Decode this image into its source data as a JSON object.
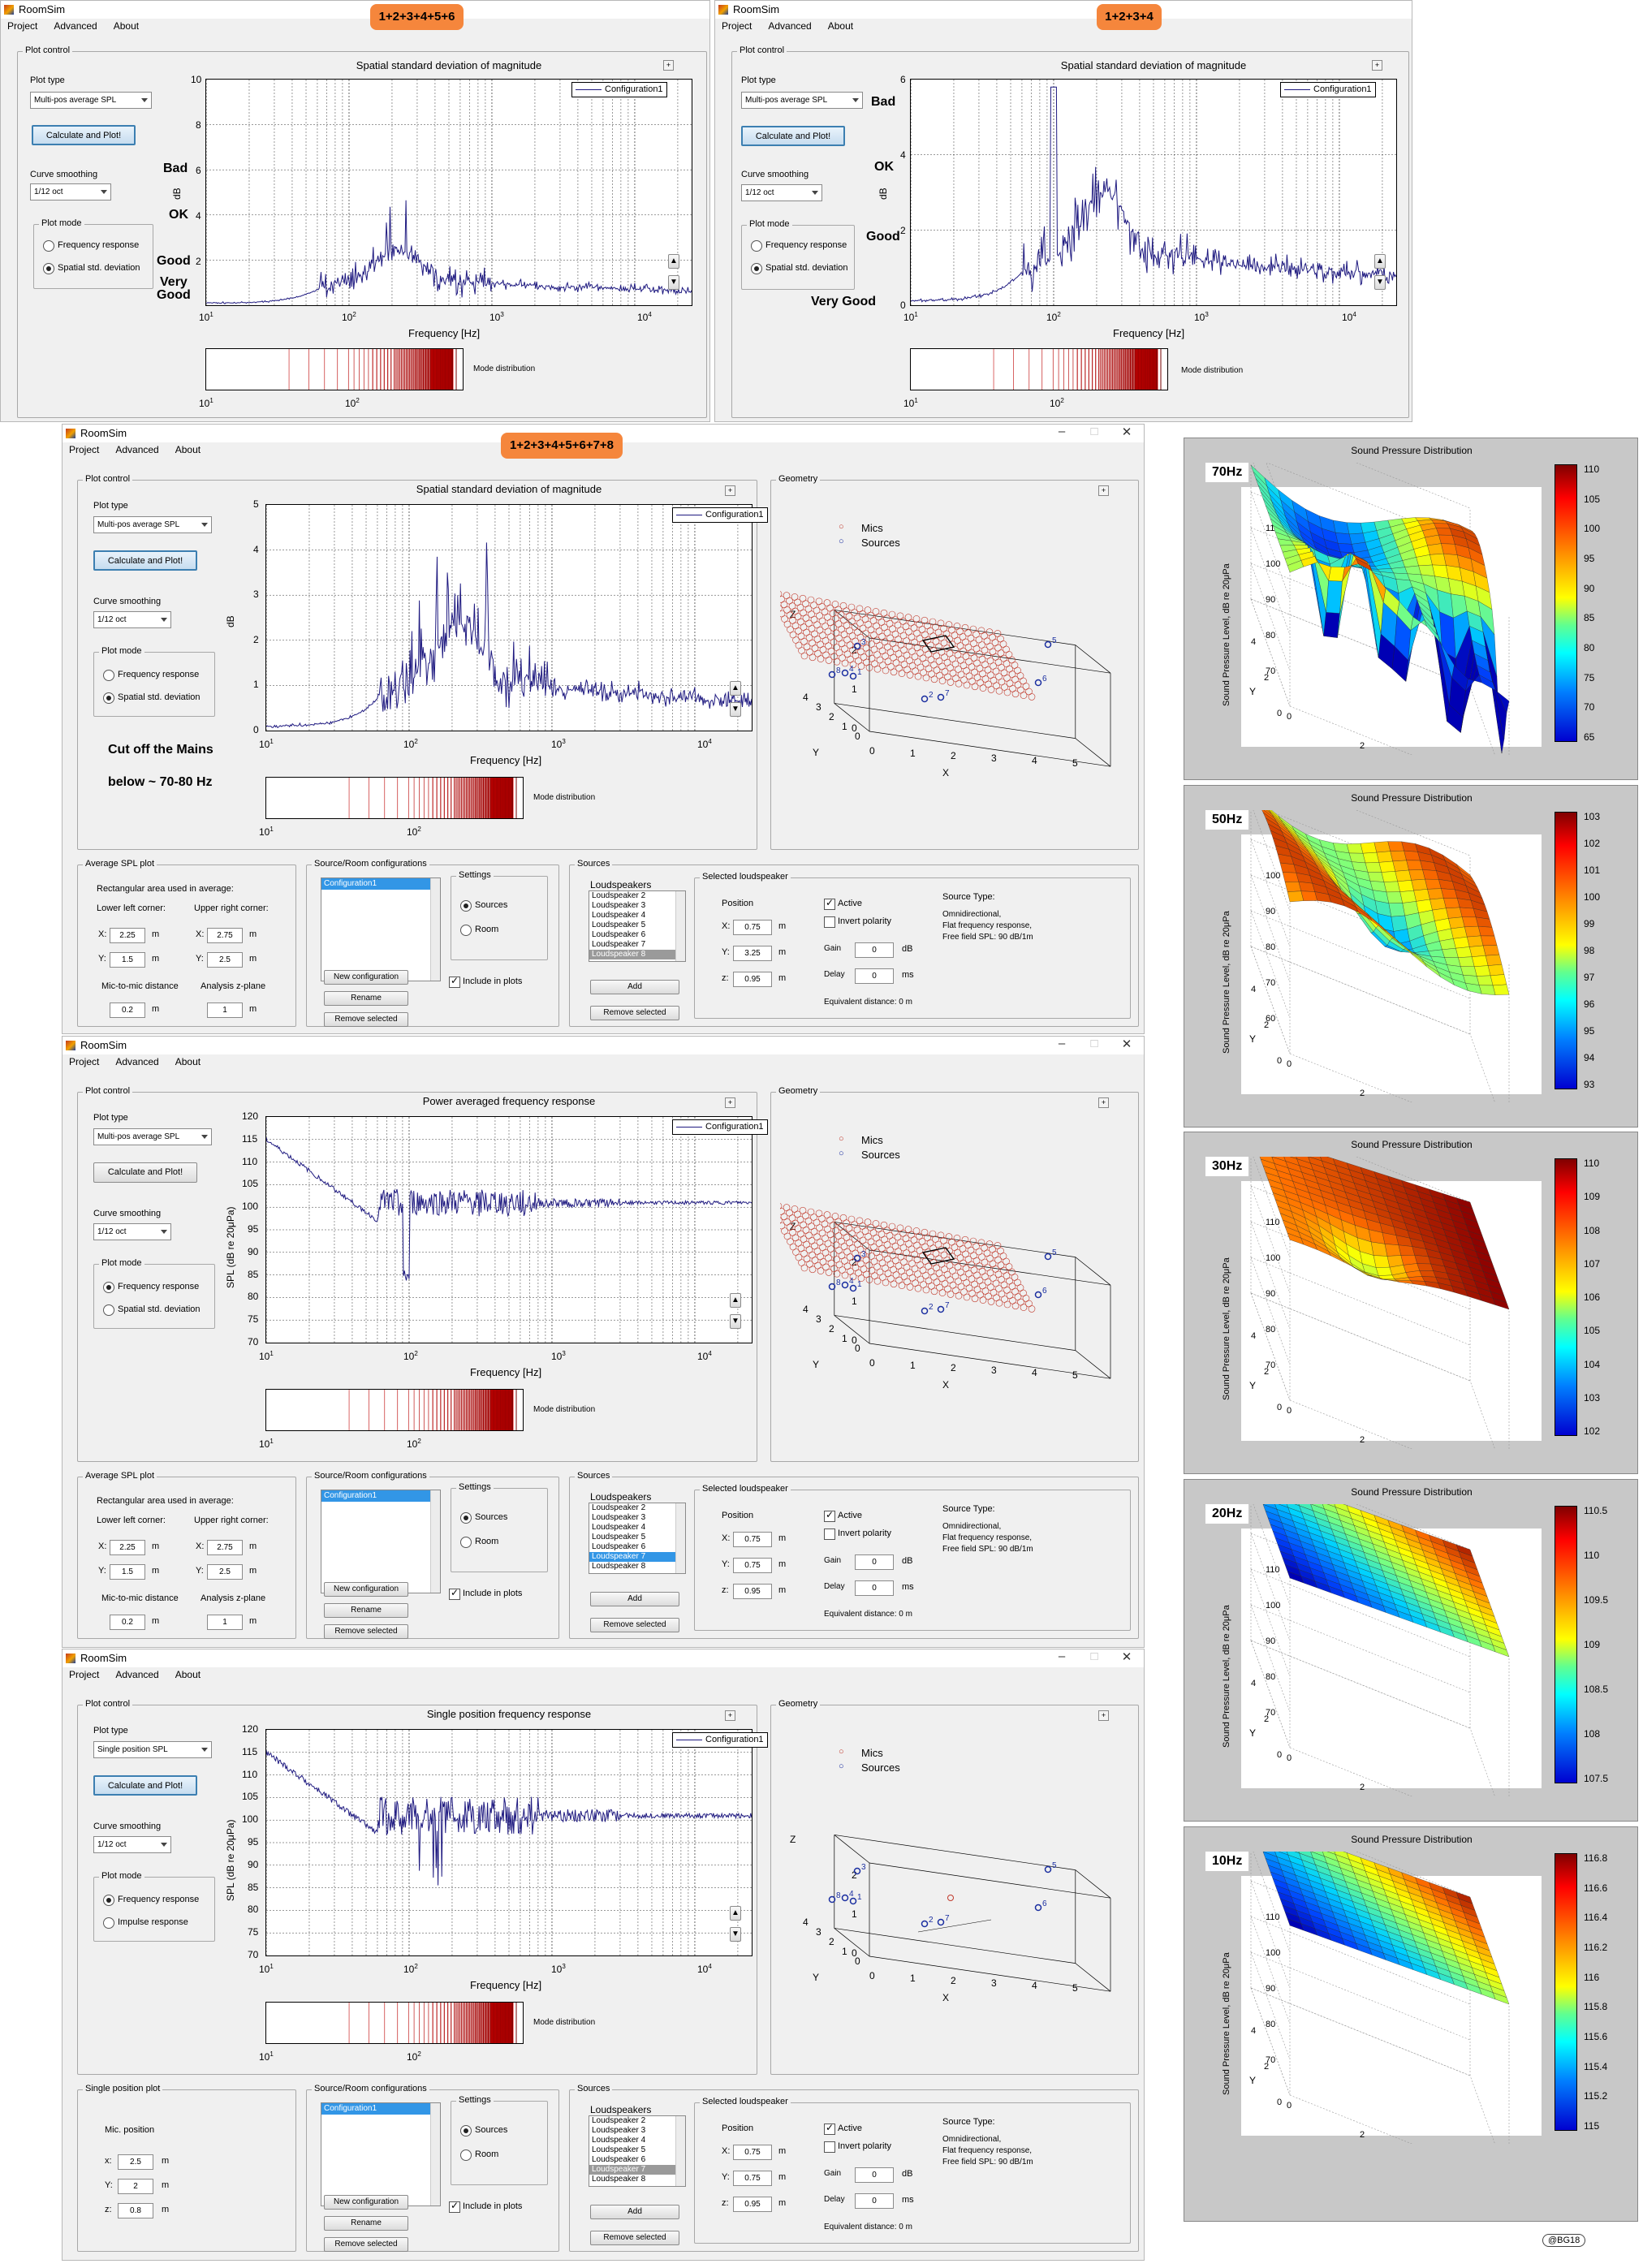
{
  "app": {
    "title": "RoomSim",
    "menu": [
      "Project",
      "Advanced",
      "About"
    ]
  },
  "pills": {
    "w1": "1+2+3+4+5+6",
    "w2": "1+2+3+4",
    "w3": "1+2+3+4+5+6+7+8"
  },
  "annotations": {
    "bad": "Bad",
    "ok": "OK",
    "good": "Good",
    "very_good_1": "Very",
    "very_good_2": "Good",
    "very_good": "Very Good",
    "cut1": "Cut off the Mains",
    "cut2": "below ~ 70-80 Hz"
  },
  "controls": {
    "plot_control": "Plot control",
    "plot_type": "Plot type",
    "multi_pos": "Multi-pos average SPL",
    "single_pos": "Single position SPL",
    "calc_btn": "Calculate and Plot!",
    "curve_smoothing": "Curve smoothing",
    "smoothing_value": "1/12 oct",
    "plot_mode": "Plot mode",
    "freq_response": "Frequency response",
    "spatial_dev": "Spatial std. deviation",
    "impulse": "Impulse response"
  },
  "plot_titles": {
    "spatial": "Spatial standard deviation of magnitude",
    "power": "Power averaged frequency response",
    "single": "Single position frequency response"
  },
  "axes": {
    "xlabel": "Frequency [Hz]",
    "ylabel_db": "dB",
    "ylabel_spl": "SPL (dB re 20μPa)",
    "mode_dist": "Mode distribution",
    "legend": "Configuration1",
    "x_ticks": [
      "10",
      "10",
      "10",
      "10"
    ],
    "x_exps": [
      "1",
      "2",
      "3",
      "4"
    ]
  },
  "geometry": {
    "title": "Geometry",
    "mics": "Mics",
    "sources": "Sources",
    "x": "X",
    "y": "Y",
    "z": "Z"
  },
  "average_spl": {
    "title": "Average SPL plot",
    "rect_label": "Rectangular area used in average:",
    "lower_left": "Lower left corner:",
    "upper_right": "Upper right corner:",
    "x_label": "X:",
    "y_label": "Y:",
    "unit": "m",
    "ll_x": "2.25",
    "ll_y": "1.5",
    "ur_x_a": "2.75",
    "ur_y_a": "2.5",
    "ur_x_b": "2.75",
    "ur_y_b": "2.5",
    "mic_to_mic": "Mic-to-mic distance",
    "mic_dist": "0.2",
    "z_plane": "Analysis z-plane",
    "z_value": "1"
  },
  "single_plot": {
    "title": "Single position plot",
    "mic_pos": "Mic. position",
    "x": "2.5",
    "y": "2",
    "z": "0.8",
    "xl": "x:",
    "yl": "Y:",
    "zl": "z:"
  },
  "configs": {
    "title": "Source/Room configurations",
    "item": "Configuration1",
    "settings": "Settings",
    "sources": "Sources",
    "room": "Room",
    "new": "New configuration",
    "rename": "Rename",
    "remove": "Remove selected",
    "include": "Include in plots"
  },
  "sources_panel": {
    "title": "Sources",
    "loudspeakers": "Loudspeakers",
    "list_a": [
      "Loudspeaker 2",
      "Loudspeaker 3",
      "Loudspeaker 4",
      "Loudspeaker 5",
      "Loudspeaker 6",
      "Loudspeaker 7",
      "Loudspeaker 8"
    ],
    "add": "Add",
    "remove": "Remove selected",
    "selected": "Selected loudspeaker",
    "position": "Position",
    "x": "0.75",
    "y_a": "3.25",
    "y_b": "0.75",
    "y_c": "0.75",
    "z": "0.95",
    "active": "Active",
    "invert": "Invert polarity",
    "gain": "Gain",
    "gain_v": "0",
    "db": "dB",
    "delay": "Delay",
    "delay_v": "0",
    "ms": "ms",
    "source_type": "Source Type:",
    "omni": "Omnidirectional,",
    "flat": "Flat frequency response,",
    "free_field": "Free field SPL: 90 dB/1m",
    "equiv": "Equivalent distance: 0 m"
  },
  "surf": {
    "title": "Sound Pressure Distribution",
    "zlabel": "Sound Pressure Level, dB re 20μPa",
    "x": "X",
    "y": "Y",
    "panels": [
      {
        "freq": "70Hz",
        "ticks": [
          "110",
          "105",
          "100",
          "95",
          "90",
          "85",
          "80",
          "75",
          "70",
          "65"
        ],
        "z": [
          "110",
          "100",
          "90",
          "80",
          "70"
        ]
      },
      {
        "freq": "50Hz",
        "ticks": [
          "103",
          "102",
          "101",
          "100",
          "99",
          "98",
          "97",
          "96",
          "95",
          "94",
          "93"
        ],
        "z": [
          "100",
          "90",
          "80",
          "70",
          "60"
        ]
      },
      {
        "freq": "30Hz",
        "ticks": [
          "110",
          "109",
          "108",
          "107",
          "106",
          "105",
          "104",
          "103",
          "102"
        ],
        "z": [
          "110",
          "100",
          "90",
          "80",
          "70"
        ]
      },
      {
        "freq": "20Hz",
        "ticks": [
          "110.5",
          "110",
          "109.5",
          "109",
          "108.5",
          "108",
          "107.5"
        ],
        "z": [
          "110",
          "100",
          "90",
          "80",
          "70"
        ]
      },
      {
        "freq": "10Hz",
        "ticks": [
          "116.8",
          "116.6",
          "116.4",
          "116.2",
          "116",
          "115.8",
          "115.6",
          "115.4",
          "115.2",
          "115"
        ],
        "z": [
          "110",
          "100",
          "90",
          "80",
          "70"
        ]
      }
    ]
  },
  "credit": "@BG18",
  "colors": {
    "accent": "#f5863c",
    "curve": "#1f1a80",
    "mic": "#c0392b",
    "source": "#1a2ea0"
  }
}
